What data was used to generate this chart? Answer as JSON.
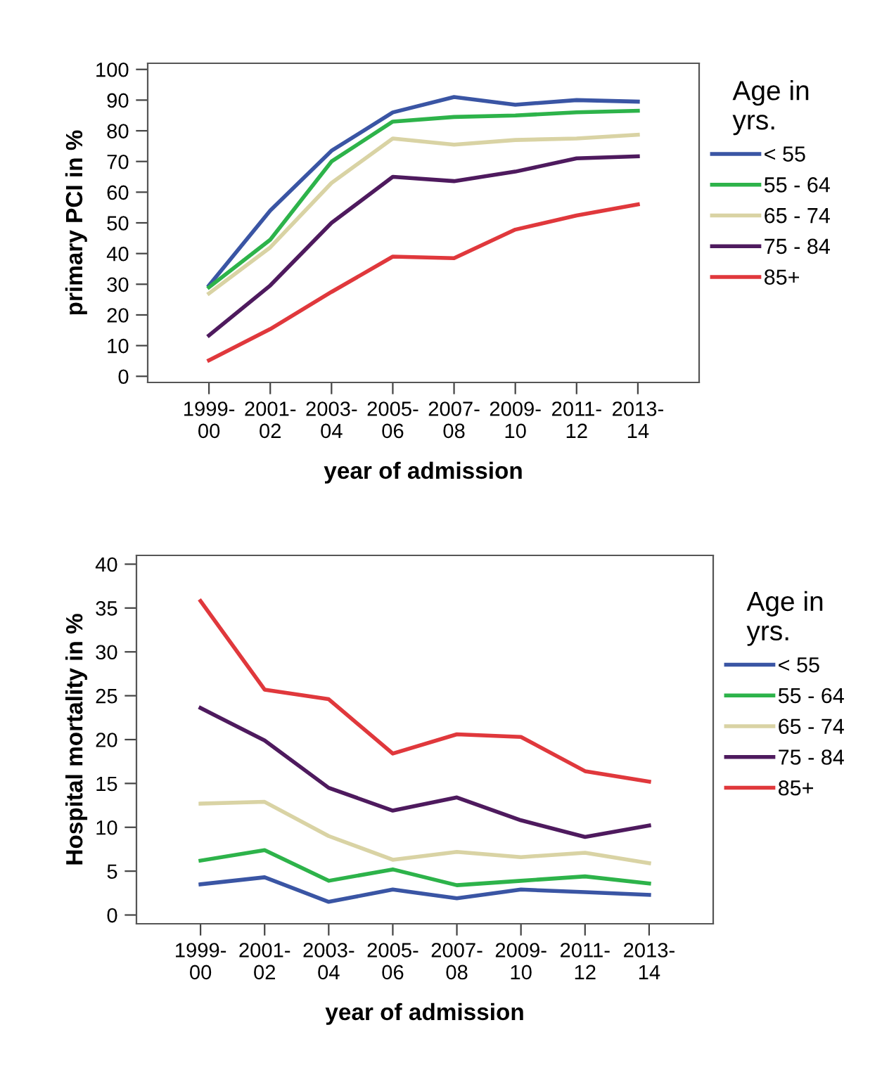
{
  "chart_data": [
    {
      "type": "line",
      "xlabel": "year of admission",
      "ylabel": "primary PCI in %",
      "legend_title": "Age in\nyrs.",
      "legend": "right",
      "categories": [
        "1999-\n00",
        "2001-\n02",
        "2003-\n04",
        "2005-\n06",
        "2007-\n08",
        "2009-\n10",
        "2011-\n12",
        "2013-\n14"
      ],
      "ylim": [
        -2,
        102
      ],
      "yticks": [
        0,
        10,
        20,
        30,
        40,
        50,
        60,
        70,
        80,
        90,
        100
      ],
      "grid": false,
      "series": [
        {
          "name": "< 55",
          "color": "#3a55a4",
          "values": [
            29.6,
            54,
            73.5,
            86,
            91,
            88.5,
            90,
            89.5
          ]
        },
        {
          "name": "55 - 64",
          "color": "#2db34a",
          "values": [
            29,
            44.5,
            70,
            83,
            84.5,
            85,
            86,
            86.5
          ]
        },
        {
          "name": "65 - 74",
          "color": "#d9d3a4",
          "values": [
            27,
            42,
            63,
            77.5,
            75.5,
            77,
            77.5,
            78.7
          ]
        },
        {
          "name": "75 - 84",
          "color": "#4e1a5e",
          "values": [
            13.3,
            29.6,
            50,
            65,
            63.6,
            66.7,
            71,
            71.7
          ]
        },
        {
          "name": "85+",
          "color": "#e0383c",
          "values": [
            5.2,
            15.4,
            27.5,
            39,
            38.5,
            47.8,
            52.4,
            56
          ]
        }
      ]
    },
    {
      "type": "line",
      "xlabel": "year of admission",
      "ylabel": "Hospital mortality in %",
      "legend_title": "Age in\nyrs.",
      "legend": "right",
      "categories": [
        "1999-\n00",
        "2001-\n02",
        "2003-\n04",
        "2005-\n06",
        "2007-\n08",
        "2009-\n10",
        "2011-\n12",
        "2013-\n14"
      ],
      "ylim": [
        -1,
        41
      ],
      "yticks": [
        0,
        5,
        10,
        15,
        20,
        25,
        30,
        35,
        40
      ],
      "grid": false,
      "series": [
        {
          "name": "< 55",
          "color": "#3a55a4",
          "values": [
            3.5,
            4.3,
            1.5,
            2.9,
            1.9,
            2.9,
            2.6,
            2.3
          ]
        },
        {
          "name": "55 - 64",
          "color": "#2db34a",
          "values": [
            6.2,
            7.4,
            3.9,
            5.2,
            3.4,
            3.9,
            4.4,
            3.6
          ]
        },
        {
          "name": "65 - 74",
          "color": "#d9d3a4",
          "values": [
            12.7,
            12.9,
            9.0,
            6.3,
            7.2,
            6.6,
            7.1,
            5.9
          ]
        },
        {
          "name": "75 - 84",
          "color": "#4e1a5e",
          "values": [
            23.6,
            19.9,
            14.5,
            11.9,
            13.4,
            10.8,
            8.9,
            10.2
          ]
        },
        {
          "name": "85+",
          "color": "#e0383c",
          "values": [
            35.8,
            25.7,
            24.6,
            18.4,
            20.6,
            20.3,
            16.4,
            15.2
          ]
        }
      ]
    }
  ]
}
